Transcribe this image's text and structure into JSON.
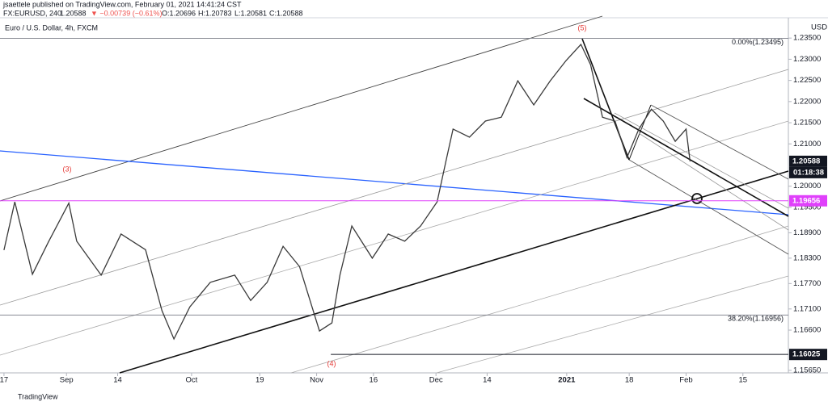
{
  "header": {
    "author_line": "jsaettele published on TradingView.com, February 01, 2021 14:41:24 CST",
    "symbol": "FX:EURUSD, 240",
    "last": "1.20588",
    "change": "▼ −0.00739 (−0.61%)",
    "open": "O:1.20696",
    "high": "H:1.20783",
    "low": "L:1.20581",
    "close": "C:1.20588"
  },
  "footer": {
    "brand": "TradingView"
  },
  "chart_data": {
    "type": "line",
    "title": "Euro / U.S. Dollar, 4h, FXCM",
    "currency": "USD",
    "color": "#3a3a3a",
    "x": [
      0,
      1.9,
      5,
      7.8,
      11.4,
      12.8,
      17.1,
      20.6,
      24.9,
      27.8,
      29.9,
      32.7,
      36.3,
      40.6,
      43.4,
      46.3,
      49.1,
      52,
      55.5,
      57.7,
      59.1,
      61.2,
      64.8,
      67.6,
      70.5,
      73.3,
      76.2,
      77.9,
      79,
      81.9,
      84.7,
      87.5,
      90.4,
      93.2,
      96.1,
      98.9,
      101.5,
      103.2,
      105.3,
      107.5,
      109.6,
      111.7,
      113.9,
      116,
      118.1,
      120,
      120.7
    ],
    "values": [
      1.1849,
      1.1963,
      1.1792,
      1.1868,
      1.196,
      1.187,
      1.179,
      1.1887,
      1.185,
      1.1706,
      1.1639,
      1.1715,
      1.1773,
      1.179,
      1.173,
      1.1773,
      1.1858,
      1.181,
      1.1658,
      1.1677,
      1.179,
      1.1906,
      1.183,
      1.1887,
      1.187,
      1.1906,
      1.1963,
      1.2068,
      1.2135,
      1.2116,
      1.2154,
      1.2163,
      1.2249,
      1.2192,
      1.2249,
      1.2297,
      1.2335,
      1.2287,
      1.2163,
      1.2154,
      1.2068,
      1.2135,
      1.2182,
      1.2154,
      1.2106,
      1.2135,
      1.20588
    ],
    "xlim": [
      -0.7,
      138
    ],
    "xticks": [
      {
        "value": 0,
        "label": "17"
      },
      {
        "value": 11,
        "label": "Sep"
      },
      {
        "value": 20,
        "label": "14"
      },
      {
        "value": 33,
        "label": "Oct"
      },
      {
        "value": 45,
        "label": "19"
      },
      {
        "value": 55,
        "label": "Nov"
      },
      {
        "value": 65,
        "label": "16"
      },
      {
        "value": 76,
        "label": "Dec"
      },
      {
        "value": 85,
        "label": "14"
      },
      {
        "value": 99,
        "label": "2021"
      },
      {
        "value": 110,
        "label": "18"
      },
      {
        "value": 120,
        "label": "Feb"
      },
      {
        "value": 130,
        "label": "15"
      }
    ],
    "ylim": [
      1.1559,
      1.2398
    ],
    "yticks": [
      {
        "value": 1.235,
        "label": "1.23500"
      },
      {
        "value": 1.23,
        "label": "1.23000"
      },
      {
        "value": 1.225,
        "label": "1.22500"
      },
      {
        "value": 1.22,
        "label": "1.22000"
      },
      {
        "value": 1.215,
        "label": "1.21500"
      },
      {
        "value": 1.21,
        "label": "1.21000"
      },
      {
        "value": 1.2,
        "label": "1.20000"
      },
      {
        "value": 1.195,
        "label": "1.19500"
      },
      {
        "value": 1.189,
        "label": "1.18900"
      },
      {
        "value": 1.183,
        "label": "1.18300"
      },
      {
        "value": 1.177,
        "label": "1.17700"
      },
      {
        "value": 1.171,
        "label": "1.17100"
      },
      {
        "value": 1.166,
        "label": "1.16600"
      },
      {
        "value": 1.1565,
        "label": "1.15650"
      }
    ],
    "levels": [
      {
        "value": 1.23495,
        "label": "0.00%(1.23495)",
        "color": "#787b86"
      },
      {
        "value": 1.16956,
        "label": "38.20%(1.16956)",
        "color": "#787b86"
      }
    ],
    "price_boxes": [
      {
        "value": 1.20588,
        "label": "1.20588",
        "color": "#131722",
        "line": false
      },
      {
        "value": 1.19656,
        "label": "1.19656",
        "color": "#e040fb",
        "line": true
      },
      {
        "value": 1.16025,
        "label": "1.16025",
        "color": "#131722",
        "line": true
      }
    ],
    "countdown": "01:18:38",
    "wave_labels": [
      "(3)",
      "(4)",
      "(5)"
    ]
  }
}
